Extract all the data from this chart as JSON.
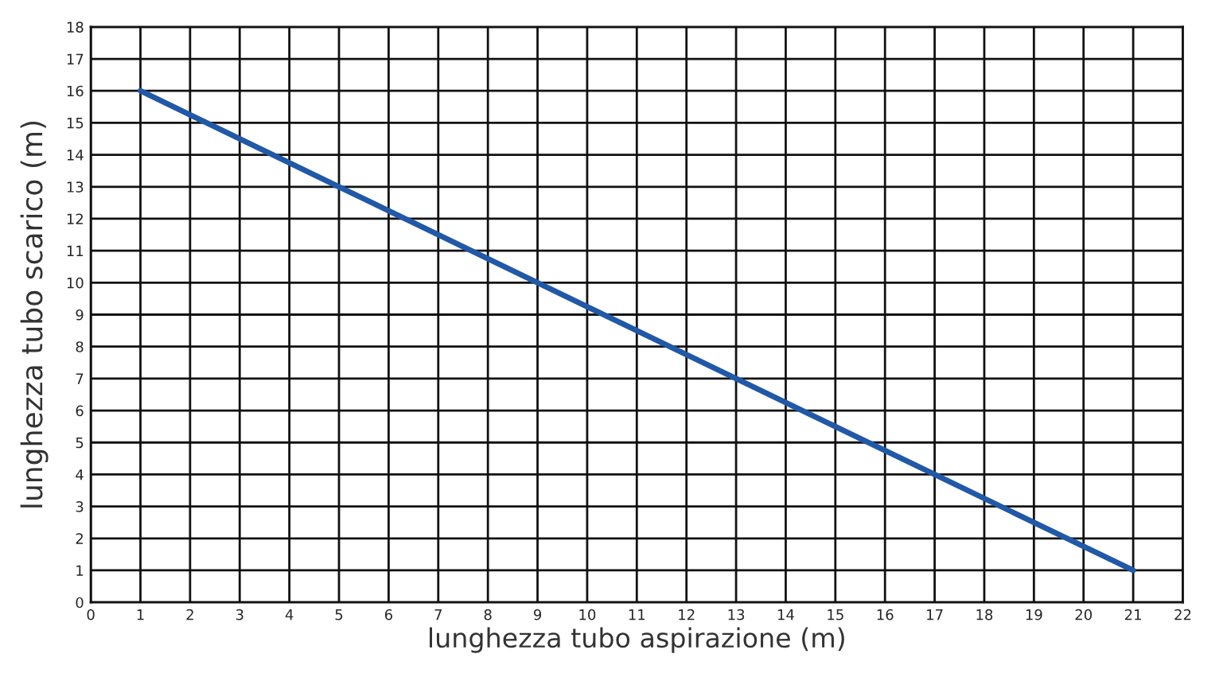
{
  "chart_data": {
    "type": "line",
    "xlabel": "lunghezza tubo aspirazione (m)",
    "ylabel": "lunghezza tubo scarico (m)",
    "x": [
      1,
      5,
      9,
      13,
      17,
      21
    ],
    "series": [
      {
        "color": "#2158a8",
        "values": [
          16,
          13,
          10,
          7,
          4,
          1
        ]
      }
    ],
    "xlim": [
      0,
      22
    ],
    "ylim": [
      0,
      18
    ],
    "xticks": [
      0,
      1,
      2,
      3,
      4,
      5,
      6,
      7,
      8,
      9,
      10,
      11,
      12,
      13,
      14,
      15,
      16,
      17,
      18,
      19,
      20,
      21,
      22
    ],
    "yticks": [
      0,
      1,
      2,
      3,
      4,
      5,
      6,
      7,
      8,
      9,
      10,
      11,
      12,
      13,
      14,
      15,
      16,
      17,
      18
    ],
    "grid": true,
    "marker": "none",
    "line_style": "solid"
  }
}
